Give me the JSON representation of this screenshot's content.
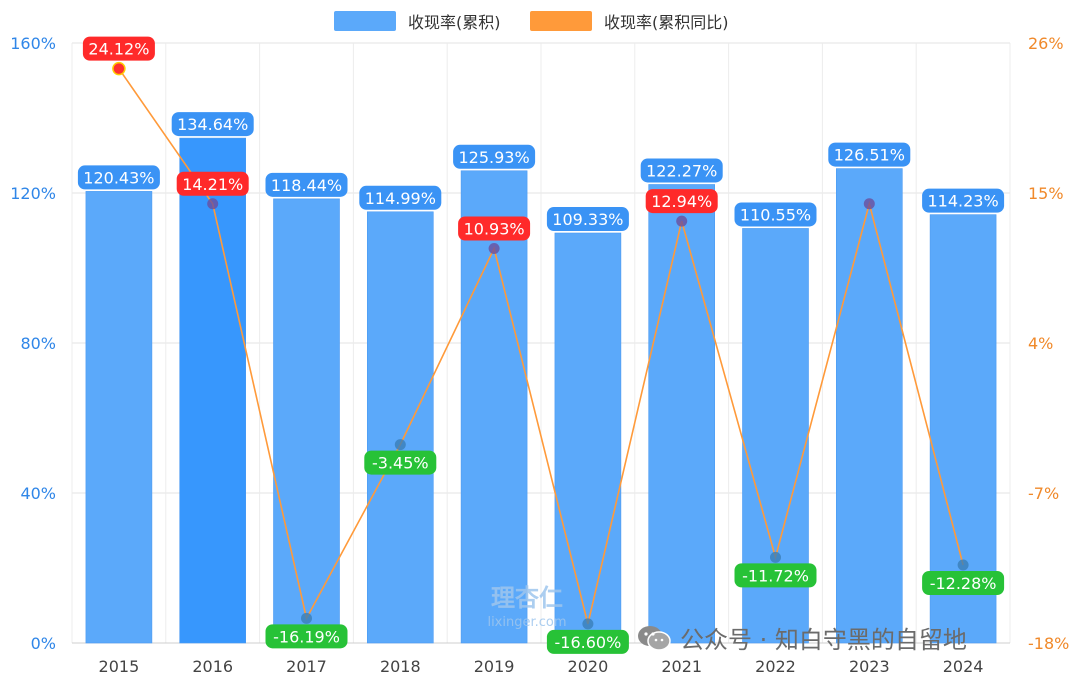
{
  "colors": {
    "bar": "#5ba9fa",
    "bar_highlight": "#3797fd",
    "line": "#ff9a3a",
    "left_axis": "#2f86e8",
    "right_axis": "#f0892a",
    "positive_label": "#ff2a2a",
    "negative_label": "#27c237",
    "bar_label": "#3a93f5",
    "marker_positive": "#6a4f9e",
    "marker_negative": "#3a7eb8"
  },
  "legend": {
    "bar_label": "收现率(累积)",
    "line_label": "收现率(累积同比)"
  },
  "watermark": {
    "brand": "理杏仁",
    "site": "lixinger.com",
    "wechat": "公众号 · 知白守黑的自留地"
  },
  "chart_data": {
    "type": "bar",
    "categories": [
      "2015",
      "2016",
      "2017",
      "2018",
      "2019",
      "2020",
      "2021",
      "2022",
      "2023",
      "2024"
    ],
    "series": [
      {
        "name": "收现率(累积)",
        "type": "bar",
        "axis": "left",
        "values": [
          120.43,
          134.64,
          118.44,
          114.99,
          125.93,
          109.33,
          122.27,
          110.55,
          126.51,
          114.23
        ],
        "labels": [
          "120.43%",
          "134.64%",
          "118.44%",
          "114.99%",
          "125.93%",
          "109.33%",
          "122.27%",
          "110.55%",
          "126.51%",
          "114.23%"
        ],
        "highlight_index": 1
      },
      {
        "name": "收现率(累积同比)",
        "type": "line",
        "axis": "right",
        "values": [
          24.12,
          14.21,
          -16.19,
          -3.45,
          10.93,
          -16.6,
          12.94,
          -11.72,
          14.21,
          -12.28
        ],
        "labels": [
          "24.12%",
          "14.21%",
          "-16.19%",
          "-3.45%",
          "10.93%",
          "-16.60%",
          "12.94%",
          "-11.72%",
          null,
          "-12.28%"
        ]
      }
    ],
    "left_axis": {
      "range": [
        0,
        160
      ],
      "ticks": [
        "0%",
        "40%",
        "80%",
        "120%",
        "160%"
      ],
      "tick_values": [
        0,
        40,
        80,
        120,
        160
      ]
    },
    "right_axis": {
      "range": [
        -18,
        26
      ],
      "ticks": [
        "-18%",
        "-7%",
        "4%",
        "15%",
        "26%"
      ],
      "tick_values": [
        -18,
        -7,
        4,
        15,
        26
      ]
    },
    "grid": true,
    "legend_position": "top-center"
  }
}
